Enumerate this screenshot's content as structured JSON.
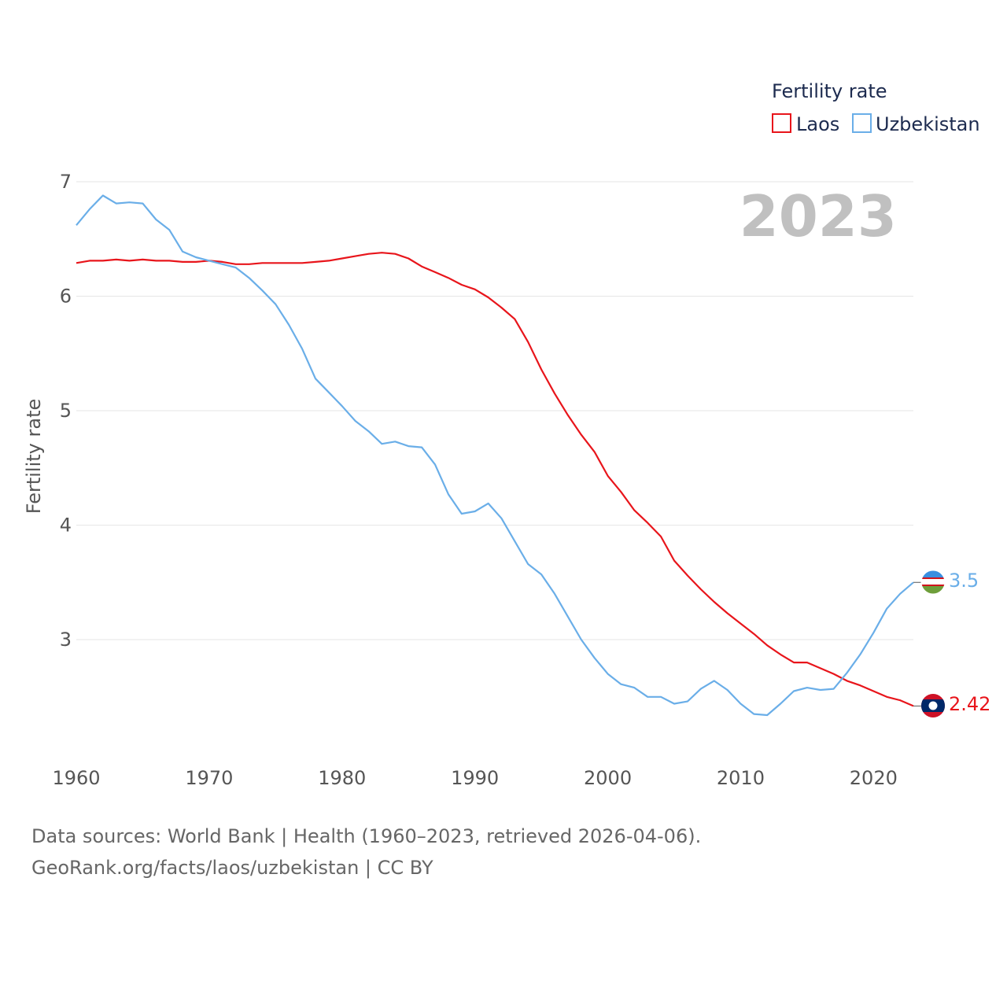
{
  "chart_data": {
    "type": "line",
    "year_label": "2023",
    "ylabel": "Fertility rate",
    "xlabel": "",
    "ylim": [
      2.0,
      7.1
    ],
    "xlim": [
      1960,
      2023
    ],
    "y_ticks": [
      3,
      4,
      5,
      6,
      7
    ],
    "x_ticks": [
      1960,
      1970,
      1980,
      1990,
      2000,
      2010,
      2020
    ],
    "grid": true,
    "legend": {
      "title": "Fertility rate",
      "position": "top-right",
      "items": [
        "Laos",
        "Uzbekistan"
      ]
    },
    "x": [
      1960,
      1961,
      1962,
      1963,
      1964,
      1965,
      1966,
      1967,
      1968,
      1969,
      1970,
      1971,
      1972,
      1973,
      1974,
      1975,
      1976,
      1977,
      1978,
      1979,
      1980,
      1981,
      1982,
      1983,
      1984,
      1985,
      1986,
      1987,
      1988,
      1989,
      1990,
      1991,
      1992,
      1993,
      1994,
      1995,
      1996,
      1997,
      1998,
      1999,
      2000,
      2001,
      2002,
      2003,
      2004,
      2005,
      2006,
      2007,
      2008,
      2009,
      2010,
      2011,
      2012,
      2013,
      2014,
      2015,
      2016,
      2017,
      2018,
      2019,
      2020,
      2021,
      2022,
      2023
    ],
    "series": [
      {
        "name": "Laos",
        "color": "#e8151b",
        "end_label": "2.42",
        "values": [
          6.29,
          6.31,
          6.31,
          6.32,
          6.31,
          6.32,
          6.31,
          6.31,
          6.3,
          6.3,
          6.31,
          6.3,
          6.28,
          6.28,
          6.29,
          6.29,
          6.29,
          6.29,
          6.3,
          6.31,
          6.33,
          6.35,
          6.37,
          6.38,
          6.37,
          6.33,
          6.26,
          6.21,
          6.16,
          6.1,
          6.06,
          5.99,
          5.9,
          5.8,
          5.6,
          5.36,
          5.15,
          4.96,
          4.79,
          4.64,
          4.43,
          4.29,
          4.13,
          4.02,
          3.9,
          3.69,
          3.56,
          3.44,
          3.33,
          3.23,
          3.14,
          3.05,
          2.95,
          2.87,
          2.8,
          2.8,
          2.75,
          2.7,
          2.64,
          2.6,
          2.55,
          2.5,
          2.47,
          2.42
        ]
      },
      {
        "name": "Uzbekistan",
        "color": "#6aaee8",
        "end_label": "3.5",
        "values": [
          6.62,
          6.76,
          6.88,
          6.81,
          6.82,
          6.81,
          6.67,
          6.58,
          6.39,
          6.34,
          6.31,
          6.28,
          6.25,
          6.16,
          6.05,
          5.93,
          5.75,
          5.54,
          5.28,
          5.16,
          5.04,
          4.91,
          4.82,
          4.71,
          4.73,
          4.69,
          4.68,
          4.53,
          4.27,
          4.1,
          4.12,
          4.19,
          4.06,
          3.86,
          3.66,
          3.57,
          3.4,
          3.2,
          3.0,
          2.84,
          2.7,
          2.61,
          2.58,
          2.5,
          2.5,
          2.44,
          2.46,
          2.57,
          2.64,
          2.56,
          2.44,
          2.35,
          2.34,
          2.44,
          2.55,
          2.58,
          2.56,
          2.57,
          2.71,
          2.87,
          3.06,
          3.27,
          3.4,
          3.5
        ]
      }
    ]
  },
  "footer": {
    "line1": "Data sources: World Bank | Health (1960–2023, retrieved 2026-04-06).",
    "line2": "GeoRank.org/facts/laos/uzbekistan | CC BY"
  }
}
